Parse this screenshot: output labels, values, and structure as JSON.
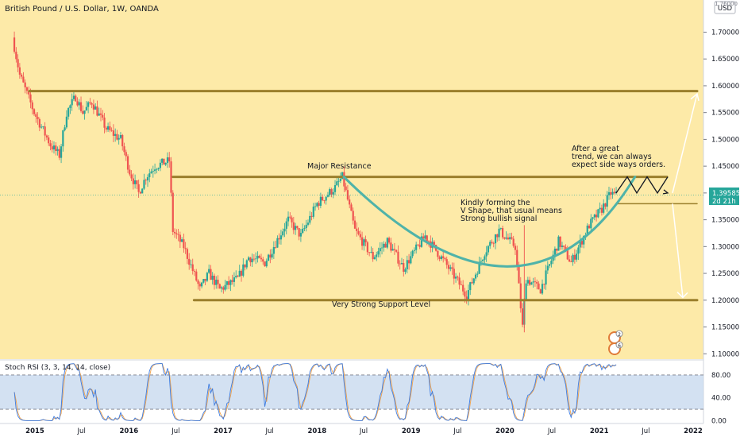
{
  "header": {
    "title": "British Pound / U.S. Dollar, 1W, OANDA",
    "currency_button": "USD",
    "currency_top": "1.76000"
  },
  "price_axis": {
    "ticks": [
      "1.70000",
      "1.65000",
      "1.60000",
      "1.55000",
      "1.50000",
      "1.45000",
      "1.40000",
      "1.35000",
      "1.30000",
      "1.25000",
      "1.20000",
      "1.15000",
      "1.10000"
    ],
    "current_price": "1.39585",
    "countdown": "2d 21h"
  },
  "time_axis": {
    "ticks": [
      "2015",
      "Jul",
      "2016",
      "Jul",
      "2017",
      "Jul",
      "2018",
      "Jul",
      "2019",
      "Jul",
      "2020",
      "Jul",
      "2021",
      "Jul",
      "2022"
    ]
  },
  "annotations": {
    "major_resistance": "Major Resistance",
    "support": "Very Strong Support Level",
    "v_shape": [
      "Kindly forming the",
      "V Shape, that usual means",
      "Strong bullish signal"
    ],
    "sideways": [
      "After a great",
      "trend, we can always",
      "expect side ways orders."
    ],
    "event_badge_1": "2",
    "event_badge_2": "6"
  },
  "rsi_panel": {
    "title": "Stoch RSI (3, 3, 14, 14, close)",
    "ticks": [
      "80.00",
      "40.00",
      "0.00"
    ]
  },
  "colors": {
    "background": "#fdeaa8",
    "rsi_background": "#ffffff",
    "up": "#26a69a",
    "down": "#ef5350",
    "level_line": "#9b7f2c",
    "curve": "#4fb3a9",
    "band_fill": "#c8d9ef",
    "k_line": "#3c7be0",
    "d_line": "#f0a24b",
    "current_price_tag": "#26a69a"
  },
  "chart_data": {
    "type": "candlestick",
    "symbol": "GBPUSD",
    "timeframe": "1W",
    "x_range": [
      "2014-10",
      "2022-02"
    ],
    "ylim": [
      1.09,
      1.76
    ],
    "price_path": [
      [
        "2014-10-13",
        1.69
      ],
      [
        "2014-11-10",
        1.62
      ],
      [
        "2015-01-05",
        1.55
      ],
      [
        "2015-03-09",
        1.49
      ],
      [
        "2015-04-13",
        1.47
      ],
      [
        "2015-05-11",
        1.55
      ],
      [
        "2015-06-15",
        1.58
      ],
      [
        "2015-07-13",
        1.55
      ],
      [
        "2015-08-17",
        1.57
      ],
      [
        "2015-10-12",
        1.52
      ],
      [
        "2015-12-07",
        1.5
      ],
      [
        "2016-01-11",
        1.44
      ],
      [
        "2016-02-15",
        1.4
      ],
      [
        "2016-03-14",
        1.43
      ],
      [
        "2016-04-18",
        1.45
      ],
      [
        "2016-06-13",
        1.46
      ],
      [
        "2016-06-27",
        1.33
      ],
      [
        "2016-08-08",
        1.3
      ],
      [
        "2016-10-10",
        1.22
      ],
      [
        "2016-11-14",
        1.25
      ],
      [
        "2016-12-26",
        1.22
      ],
      [
        "2017-03-06",
        1.24
      ],
      [
        "2017-04-17",
        1.28
      ],
      [
        "2017-06-19",
        1.27
      ],
      [
        "2017-09-18",
        1.35
      ],
      [
        "2017-11-06",
        1.32
      ],
      [
        "2018-01-08",
        1.38
      ],
      [
        "2018-03-19",
        1.41
      ],
      [
        "2018-04-16",
        1.43
      ],
      [
        "2018-06-04",
        1.33
      ],
      [
        "2018-08-13",
        1.28
      ],
      [
        "2018-10-08",
        1.31
      ],
      [
        "2018-12-10",
        1.26
      ],
      [
        "2019-03-04",
        1.32
      ],
      [
        "2019-05-20",
        1.27
      ],
      [
        "2019-08-12",
        1.21
      ],
      [
        "2019-10-21",
        1.29
      ],
      [
        "2019-12-16",
        1.33
      ],
      [
        "2020-02-17",
        1.3
      ],
      [
        "2020-03-16",
        1.15
      ],
      [
        "2020-03-30",
        1.24
      ],
      [
        "2020-05-25",
        1.22
      ],
      [
        "2020-08-03",
        1.31
      ],
      [
        "2020-09-21",
        1.27
      ],
      [
        "2020-11-30",
        1.34
      ],
      [
        "2021-01-18",
        1.37
      ],
      [
        "2021-02-22",
        1.4
      ],
      [
        "2021-03-08",
        1.39585
      ]
    ],
    "levels": [
      {
        "price": 1.59,
        "label": ""
      },
      {
        "price": 1.43,
        "label": "Major Resistance"
      },
      {
        "price": 1.2,
        "label": "Very Strong Support Level"
      },
      {
        "price": 1.38,
        "label": ""
      }
    ],
    "stoch_rsi": {
      "params": [
        3,
        3,
        14,
        14
      ],
      "source": "close",
      "upper_band": 80,
      "lower_band": 20,
      "ylim": [
        -5,
        105
      ]
    }
  }
}
